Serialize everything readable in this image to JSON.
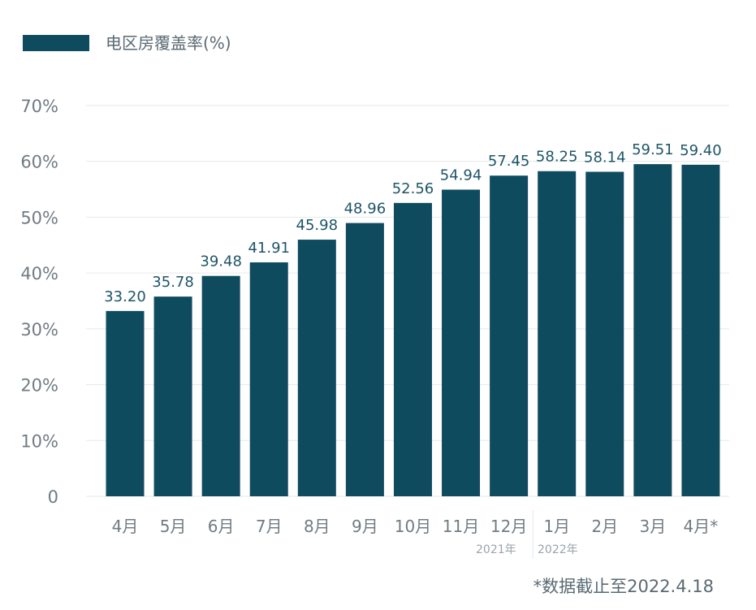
{
  "chart_data": {
    "type": "bar",
    "legend": {
      "label": "电区房覆盖率(%)",
      "color": "#0f4b5f",
      "placement": "top-left"
    },
    "categories": [
      "4月",
      "5月",
      "6月",
      "7月",
      "8月",
      "9月",
      "10月",
      "11月",
      "12月",
      "1月",
      "2月",
      "3月",
      "4月*"
    ],
    "series": [
      {
        "name": "电区房覆盖率(%)",
        "values": [
          33.2,
          35.78,
          39.48,
          41.91,
          45.98,
          48.96,
          52.56,
          54.94,
          57.45,
          58.25,
          58.14,
          59.51,
          59.4
        ]
      }
    ],
    "data_labels": [
      "33.20",
      "35.78",
      "39.48",
      "41.91",
      "45.98",
      "48.96",
      "52.56",
      "54.94",
      "57.45",
      "58.25",
      "58.14",
      "59.51",
      "59.40"
    ],
    "yticks": [
      "0",
      "10%",
      "20%",
      "30%",
      "40%",
      "50%",
      "60%",
      "70%"
    ],
    "ylim": [
      0,
      70
    ],
    "grid": true,
    "year_labels": {
      "first": "2021年",
      "second": "2022年"
    },
    "footnote": "*数据截止至2022.4.18",
    "colors": {
      "bar": "#0f4b5f",
      "label": "#1e5566",
      "tick": "#707c82",
      "grid": "#e6e9ea"
    }
  }
}
